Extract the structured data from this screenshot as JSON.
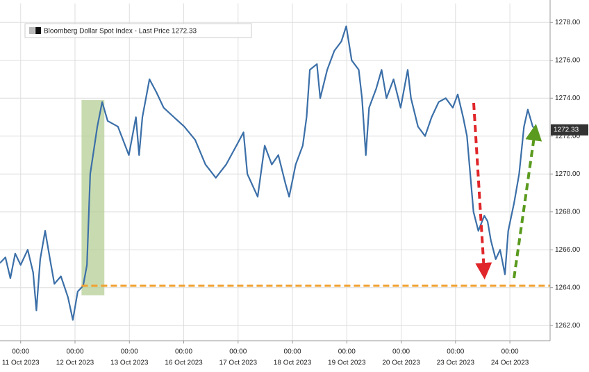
{
  "chart_data": {
    "type": "line",
    "series": [
      {
        "name": "Bloomberg Dollar Spot Index - Last Price",
        "color": "#3b6fa8",
        "x": [
          -0.38,
          -0.28,
          -0.19,
          -0.1,
          0.0,
          0.13,
          0.23,
          0.29,
          0.36,
          0.45,
          0.54,
          0.62,
          0.74,
          0.87,
          0.96,
          1.05,
          1.15,
          1.22,
          1.28,
          1.41,
          1.5,
          1.6,
          1.79,
          1.99,
          2.12,
          2.18,
          2.24,
          2.37,
          2.5,
          2.63,
          2.82,
          3.01,
          3.21,
          3.4,
          3.59,
          3.78,
          3.97,
          4.1,
          4.17,
          4.36,
          4.49,
          4.62,
          4.74,
          4.87,
          4.94,
          5.06,
          5.19,
          5.26,
          5.32,
          5.45,
          5.51,
          5.64,
          5.77,
          5.9,
          5.99,
          6.09,
          6.22,
          6.28,
          6.35,
          6.41,
          6.54,
          6.64,
          6.73,
          6.86,
          6.99,
          7.12,
          7.18,
          7.31,
          7.44,
          7.56,
          7.69,
          7.82,
          7.95,
          8.04,
          8.14,
          8.21,
          8.27,
          8.33,
          8.42,
          8.53,
          8.59,
          8.65,
          8.74,
          8.82,
          8.91,
          8.97,
          9.08,
          9.17,
          9.26,
          9.33,
          9.42,
          9.49
        ],
        "values": [
          1265.3,
          1265.6,
          1264.5,
          1265.8,
          1265.2,
          1266.0,
          1264.8,
          1262.8,
          1265.5,
          1267.0,
          1265.5,
          1264.2,
          1264.6,
          1263.5,
          1262.3,
          1263.8,
          1264.1,
          1265.2,
          1270.0,
          1272.5,
          1273.8,
          1272.8,
          1272.5,
          1271.0,
          1273.0,
          1271.0,
          1273.0,
          1275.0,
          1274.3,
          1273.5,
          1273.0,
          1272.5,
          1271.8,
          1270.5,
          1269.8,
          1270.5,
          1271.5,
          1272.2,
          1270.0,
          1268.8,
          1271.5,
          1270.5,
          1271.0,
          1269.5,
          1268.8,
          1270.5,
          1271.5,
          1273.0,
          1275.5,
          1275.8,
          1274.0,
          1275.5,
          1276.5,
          1277.0,
          1277.8,
          1276.0,
          1275.5,
          1274.0,
          1271.0,
          1273.5,
          1274.5,
          1275.5,
          1274.0,
          1275.0,
          1273.5,
          1275.5,
          1274.0,
          1272.5,
          1272.0,
          1273.0,
          1273.8,
          1274.0,
          1273.5,
          1274.2,
          1273.0,
          1272.0,
          1270.0,
          1268.0,
          1267.0,
          1267.8,
          1267.5,
          1266.5,
          1265.5,
          1266.0,
          1264.7,
          1267.0,
          1268.5,
          1270.0,
          1272.5,
          1273.4,
          1272.5,
          1272.33
        ]
      }
    ],
    "last_value": 1272.33,
    "xlim": [
      -0.38,
      9.74
    ],
    "xticks": [
      {
        "value": 0,
        "label": "00:00"
      },
      {
        "value": 1,
        "label": "00:00"
      },
      {
        "value": 2,
        "label": "00:00"
      },
      {
        "value": 3,
        "label": "00:00"
      },
      {
        "value": 4,
        "label": "00:00"
      },
      {
        "value": 5,
        "label": "00:00"
      },
      {
        "value": 6,
        "label": "00:00"
      },
      {
        "value": 7,
        "label": "00:00"
      },
      {
        "value": 8,
        "label": "00:00"
      },
      {
        "value": 9,
        "label": "00:00"
      }
    ],
    "x_date_labels": [
      "11 Oct 2023",
      "12 Oct 2023",
      "13 Oct 2023",
      "16 Oct 2023",
      "17 Oct 2023",
      "18 Oct 2023",
      "19 Oct 2023",
      "20 Oct 2023",
      "23 Oct 2023",
      "24 Oct 2023"
    ],
    "ylim": [
      1261.2,
      1279.0
    ],
    "yticks": [
      {
        "value": 1262,
        "label": "1262.00"
      },
      {
        "value": 1264,
        "label": "1264.00"
      },
      {
        "value": 1266,
        "label": "1266.00"
      },
      {
        "value": 1268,
        "label": "1268.00"
      },
      {
        "value": 1270,
        "label": "1270.00"
      },
      {
        "value": 1272,
        "label": "1272.00"
      },
      {
        "value": 1274,
        "label": "1274.00"
      },
      {
        "value": 1276,
        "label": "1276.00"
      },
      {
        "value": 1278,
        "label": "1278.00"
      }
    ],
    "grid": true,
    "highlight": {
      "xlim": [
        1.12,
        1.54
      ],
      "ylim": [
        1263.6,
        1273.9
      ],
      "color": "#b5cf96"
    },
    "reference_line": {
      "y": 1264.1,
      "color": "#f0a030"
    }
  }
}
